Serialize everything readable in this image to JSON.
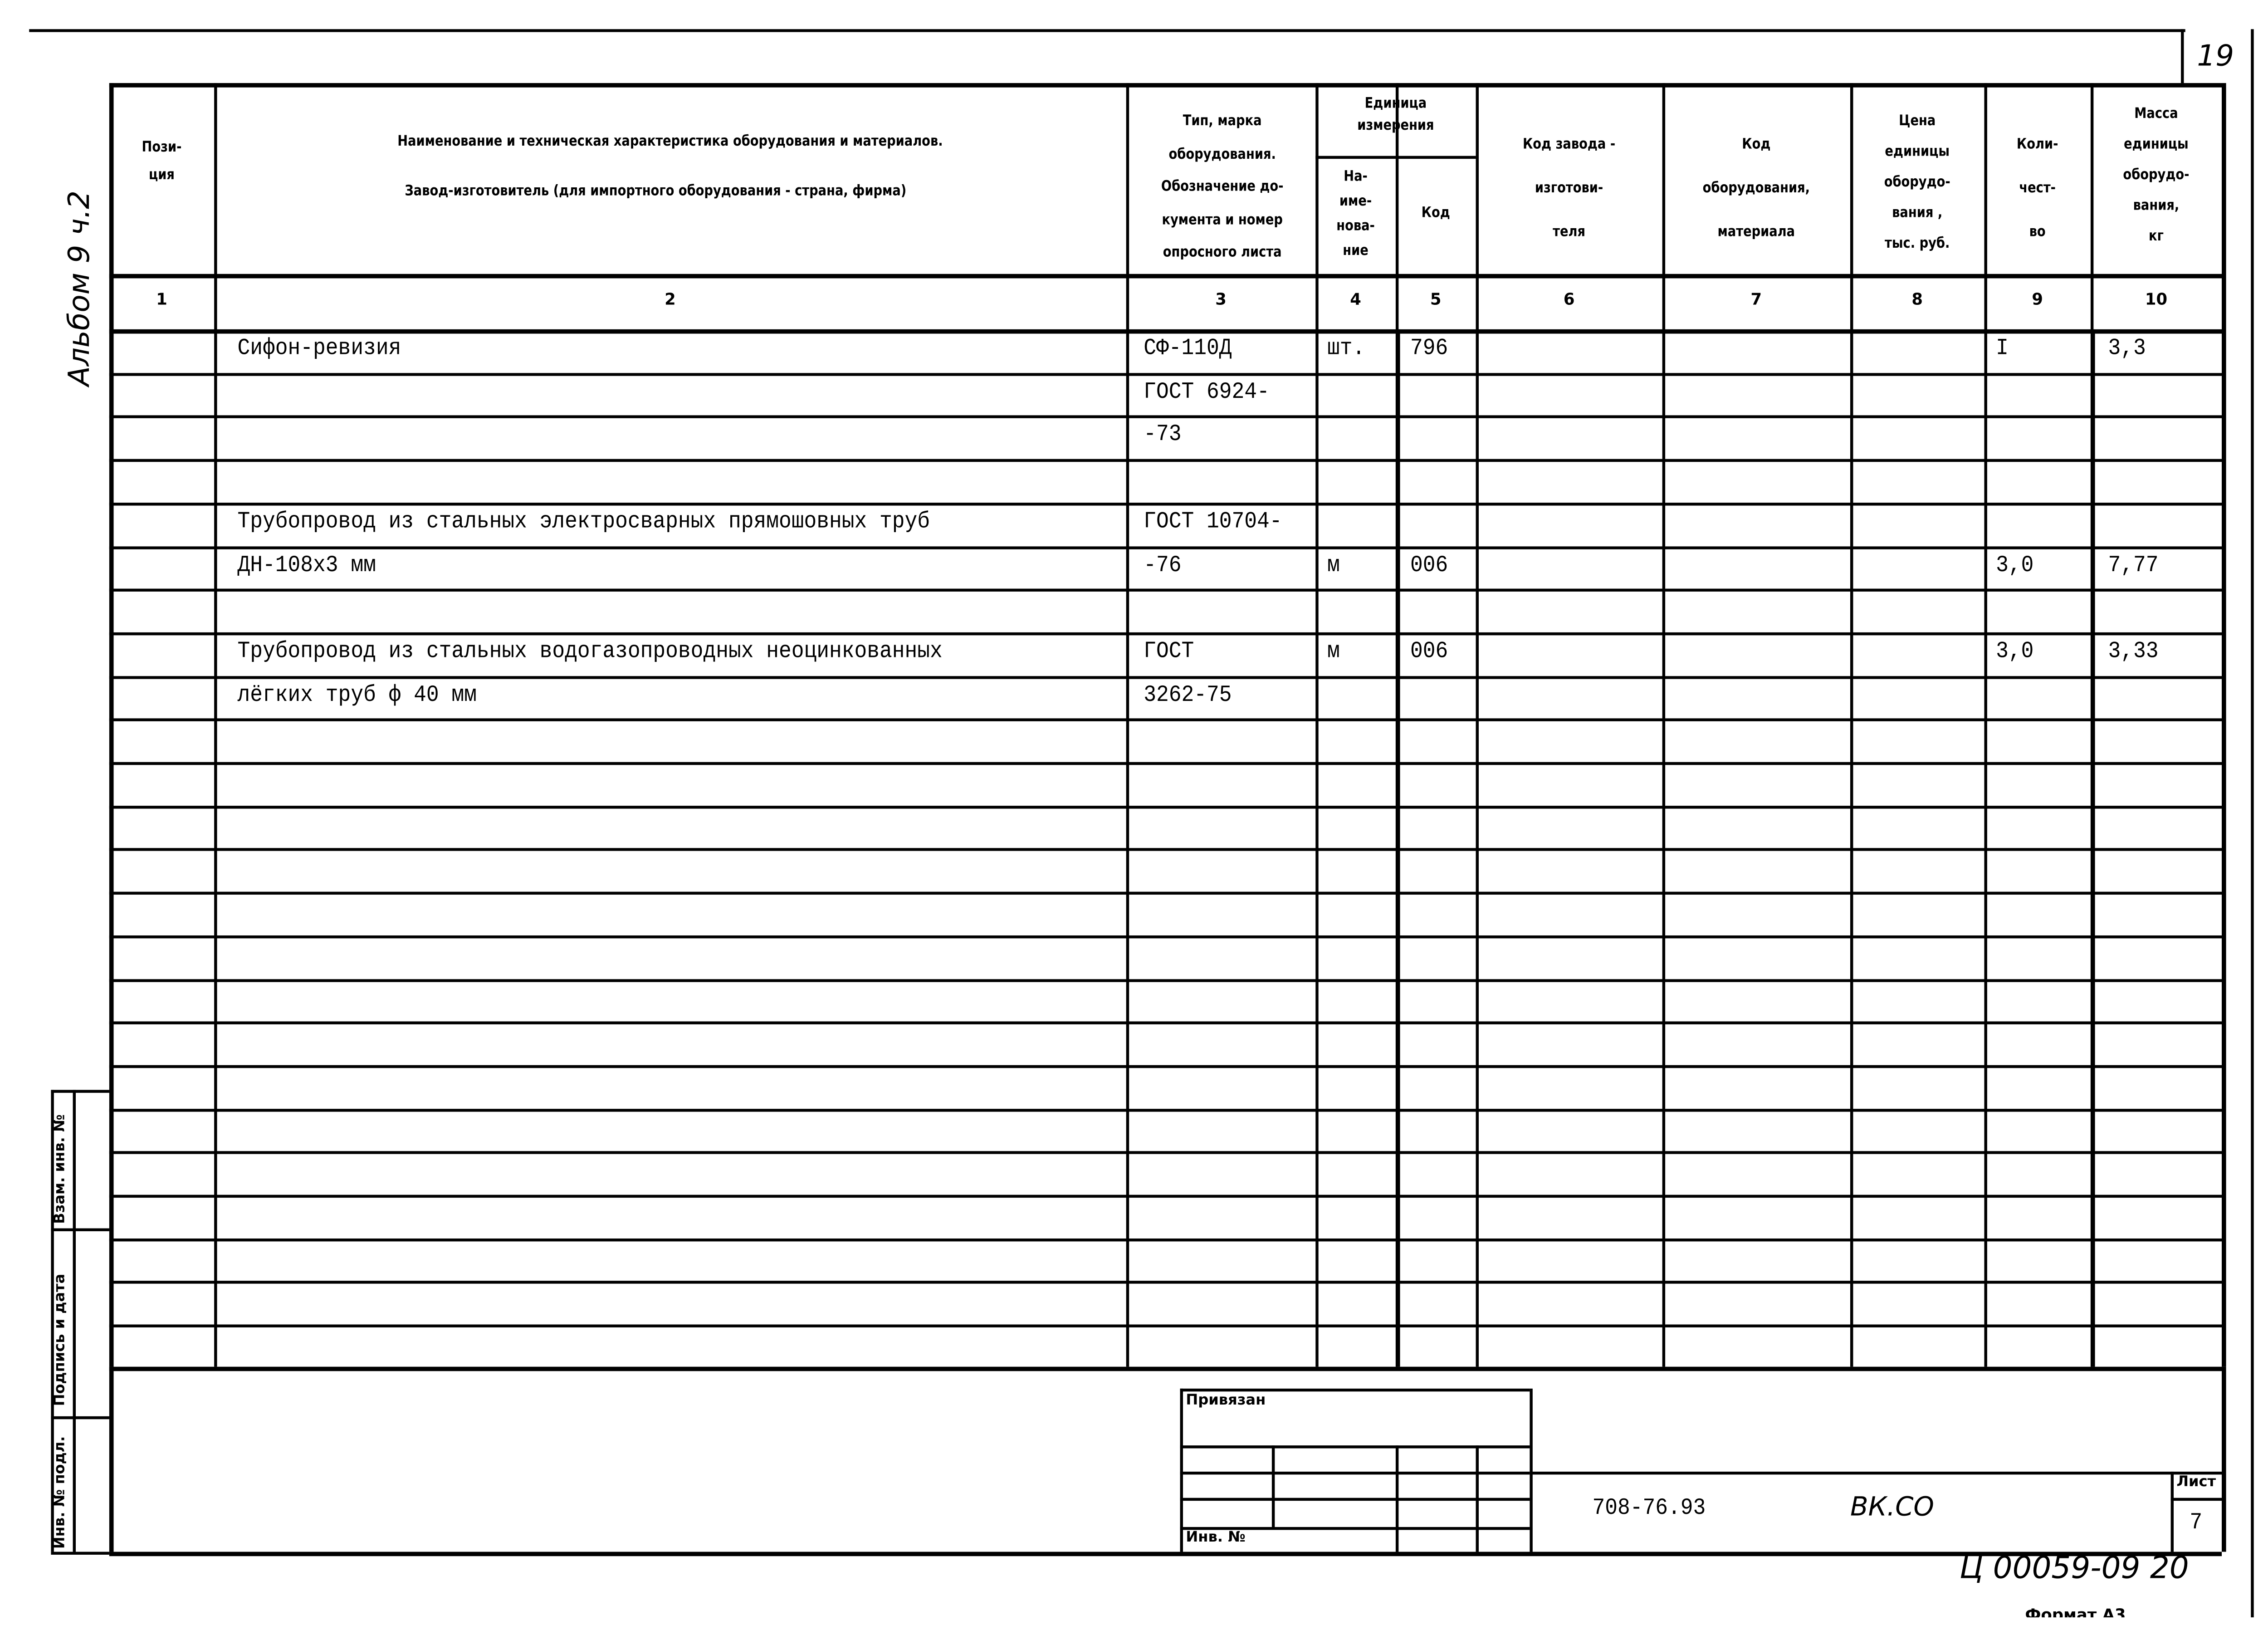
{
  "headers": {
    "pos": "Пози-\nция",
    "name_line1": "Наименование и техническая характеристика  оборудования и материалов.",
    "name_line2": "Завод-изготовитель  (для импортного оборудования -  страна, фирма)",
    "type": "Тип,      марка\nоборудования.\nОбозначение  до-\nкумента  и  номер\nопросного листа",
    "unit": "Единица\nизмерения",
    "unit_name": "На-\nиме-\nнова-\nние",
    "unit_code": "Код",
    "factory_code": "Код  завода -\nизготови-\nтеля",
    "equip_code": "Код\nоборудования,\nматериала",
    "price": "Цена\nединицы\nоборудо-\nвания ,\nтыс. руб.",
    "qty": "Коли-\nчест-\nво",
    "mass": "Масса\nединицы\nоборудо-\nвания,\nкг"
  },
  "column_numbers": [
    "1",
    "2",
    "3",
    "4",
    "5",
    "6",
    "7",
    "8",
    "9",
    "10"
  ],
  "rows": [
    {
      "pos": "",
      "name": "Сифон-ревизия",
      "type": "СФ-110Д",
      "unit": "шт.",
      "code": "796",
      "factory": "",
      "equip": "",
      "price": "",
      "qty": "I",
      "mass": "3,3"
    },
    {
      "pos": "",
      "name": "",
      "type": "ГОСТ 6924-",
      "unit": "",
      "code": "",
      "factory": "",
      "equip": "",
      "price": "",
      "qty": "",
      "mass": ""
    },
    {
      "pos": "",
      "name": "",
      "type": "-73",
      "unit": "",
      "code": "",
      "factory": "",
      "equip": "",
      "price": "",
      "qty": "",
      "mass": ""
    },
    {
      "pos": "",
      "name": "",
      "type": "",
      "unit": "",
      "code": "",
      "factory": "",
      "equip": "",
      "price": "",
      "qty": "",
      "mass": ""
    },
    {
      "pos": "",
      "name": "Трубопровод из стальных электросварных прямошовных труб",
      "type": "ГОСТ 10704-",
      "unit": "",
      "code": "",
      "factory": "",
      "equip": "",
      "price": "",
      "qty": "",
      "mass": ""
    },
    {
      "pos": "",
      "name": "ДН-108х3 мм",
      "type": "-76",
      "unit": "м",
      "code": "006",
      "factory": "",
      "equip": "",
      "price": "",
      "qty": "3,0",
      "mass": "7,77"
    },
    {
      "pos": "",
      "name": "",
      "type": "",
      "unit": "",
      "code": "",
      "factory": "",
      "equip": "",
      "price": "",
      "qty": "",
      "mass": ""
    },
    {
      "pos": "",
      "name": "Трубопровод из стальных водогазопроводных неоцинкованных",
      "type": "ГОСТ",
      "unit": "м",
      "code": "006",
      "factory": "",
      "equip": "",
      "price": "",
      "qty": "3,0",
      "mass": "3,33"
    },
    {
      "pos": "",
      "name": "лёгких труб   ф 40 мм",
      "type": "3262-75",
      "unit": "",
      "code": "",
      "factory": "",
      "equip": "",
      "price": "",
      "qty": "",
      "mass": ""
    }
  ],
  "stamp": {
    "tied": "Привязан",
    "inv": "Инв. №"
  },
  "title_block": {
    "doc_code": "708-76.93",
    "section": "ВК.СО",
    "sheet_label": "Лист",
    "sheet": "7"
  },
  "margin": {
    "replace": "Взам. инв. №",
    "signature": "Подпись и дата",
    "inv_orig": "Инв. № подл."
  },
  "handwritten": {
    "album": "Альбом 9 ч.2",
    "page": "19",
    "archive": "Ц 00059-09  20"
  },
  "format": "Формат А3"
}
